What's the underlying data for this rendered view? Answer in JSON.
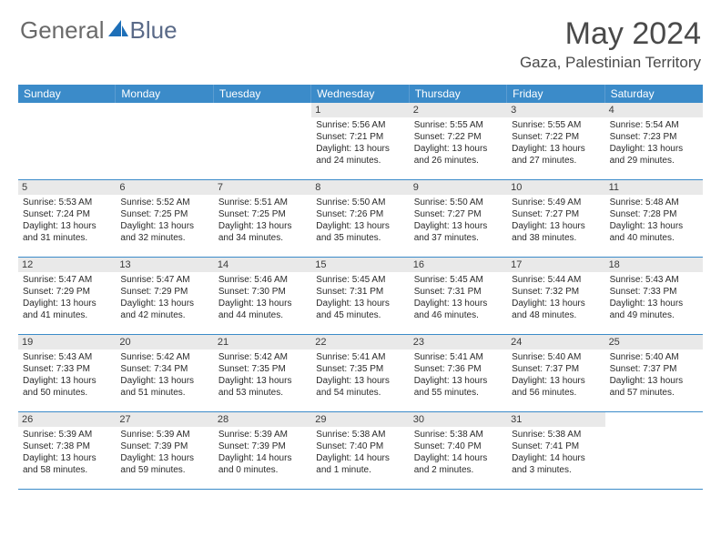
{
  "logo": {
    "general": "General",
    "blue": "Blue"
  },
  "title": "May 2024",
  "location": "Gaza, Palestinian Territory",
  "colors": {
    "header_bg": "#3b8bc9",
    "header_text": "#ffffff",
    "daynum_bg": "#e9e9e9",
    "border": "#3b8bc9",
    "body_text": "#2a2a2a",
    "title_text": "#4a4a4a"
  },
  "weekdays": [
    "Sunday",
    "Monday",
    "Tuesday",
    "Wednesday",
    "Thursday",
    "Friday",
    "Saturday"
  ],
  "weeks": [
    [
      {
        "n": "",
        "sr": "",
        "ss": "",
        "dl": ""
      },
      {
        "n": "",
        "sr": "",
        "ss": "",
        "dl": ""
      },
      {
        "n": "",
        "sr": "",
        "ss": "",
        "dl": ""
      },
      {
        "n": "1",
        "sr": "5:56 AM",
        "ss": "7:21 PM",
        "dl": "13 hours and 24 minutes."
      },
      {
        "n": "2",
        "sr": "5:55 AM",
        "ss": "7:22 PM",
        "dl": "13 hours and 26 minutes."
      },
      {
        "n": "3",
        "sr": "5:55 AM",
        "ss": "7:22 PM",
        "dl": "13 hours and 27 minutes."
      },
      {
        "n": "4",
        "sr": "5:54 AM",
        "ss": "7:23 PM",
        "dl": "13 hours and 29 minutes."
      }
    ],
    [
      {
        "n": "5",
        "sr": "5:53 AM",
        "ss": "7:24 PM",
        "dl": "13 hours and 31 minutes."
      },
      {
        "n": "6",
        "sr": "5:52 AM",
        "ss": "7:25 PM",
        "dl": "13 hours and 32 minutes."
      },
      {
        "n": "7",
        "sr": "5:51 AM",
        "ss": "7:25 PM",
        "dl": "13 hours and 34 minutes."
      },
      {
        "n": "8",
        "sr": "5:50 AM",
        "ss": "7:26 PM",
        "dl": "13 hours and 35 minutes."
      },
      {
        "n": "9",
        "sr": "5:50 AM",
        "ss": "7:27 PM",
        "dl": "13 hours and 37 minutes."
      },
      {
        "n": "10",
        "sr": "5:49 AM",
        "ss": "7:27 PM",
        "dl": "13 hours and 38 minutes."
      },
      {
        "n": "11",
        "sr": "5:48 AM",
        "ss": "7:28 PM",
        "dl": "13 hours and 40 minutes."
      }
    ],
    [
      {
        "n": "12",
        "sr": "5:47 AM",
        "ss": "7:29 PM",
        "dl": "13 hours and 41 minutes."
      },
      {
        "n": "13",
        "sr": "5:47 AM",
        "ss": "7:29 PM",
        "dl": "13 hours and 42 minutes."
      },
      {
        "n": "14",
        "sr": "5:46 AM",
        "ss": "7:30 PM",
        "dl": "13 hours and 44 minutes."
      },
      {
        "n": "15",
        "sr": "5:45 AM",
        "ss": "7:31 PM",
        "dl": "13 hours and 45 minutes."
      },
      {
        "n": "16",
        "sr": "5:45 AM",
        "ss": "7:31 PM",
        "dl": "13 hours and 46 minutes."
      },
      {
        "n": "17",
        "sr": "5:44 AM",
        "ss": "7:32 PM",
        "dl": "13 hours and 48 minutes."
      },
      {
        "n": "18",
        "sr": "5:43 AM",
        "ss": "7:33 PM",
        "dl": "13 hours and 49 minutes."
      }
    ],
    [
      {
        "n": "19",
        "sr": "5:43 AM",
        "ss": "7:33 PM",
        "dl": "13 hours and 50 minutes."
      },
      {
        "n": "20",
        "sr": "5:42 AM",
        "ss": "7:34 PM",
        "dl": "13 hours and 51 minutes."
      },
      {
        "n": "21",
        "sr": "5:42 AM",
        "ss": "7:35 PM",
        "dl": "13 hours and 53 minutes."
      },
      {
        "n": "22",
        "sr": "5:41 AM",
        "ss": "7:35 PM",
        "dl": "13 hours and 54 minutes."
      },
      {
        "n": "23",
        "sr": "5:41 AM",
        "ss": "7:36 PM",
        "dl": "13 hours and 55 minutes."
      },
      {
        "n": "24",
        "sr": "5:40 AM",
        "ss": "7:37 PM",
        "dl": "13 hours and 56 minutes."
      },
      {
        "n": "25",
        "sr": "5:40 AM",
        "ss": "7:37 PM",
        "dl": "13 hours and 57 minutes."
      }
    ],
    [
      {
        "n": "26",
        "sr": "5:39 AM",
        "ss": "7:38 PM",
        "dl": "13 hours and 58 minutes."
      },
      {
        "n": "27",
        "sr": "5:39 AM",
        "ss": "7:39 PM",
        "dl": "13 hours and 59 minutes."
      },
      {
        "n": "28",
        "sr": "5:39 AM",
        "ss": "7:39 PM",
        "dl": "14 hours and 0 minutes."
      },
      {
        "n": "29",
        "sr": "5:38 AM",
        "ss": "7:40 PM",
        "dl": "14 hours and 1 minute."
      },
      {
        "n": "30",
        "sr": "5:38 AM",
        "ss": "7:40 PM",
        "dl": "14 hours and 2 minutes."
      },
      {
        "n": "31",
        "sr": "5:38 AM",
        "ss": "7:41 PM",
        "dl": "14 hours and 3 minutes."
      },
      {
        "n": "",
        "sr": "",
        "ss": "",
        "dl": ""
      }
    ]
  ],
  "labels": {
    "sunrise": "Sunrise:",
    "sunset": "Sunset:",
    "daylight": "Daylight:"
  }
}
